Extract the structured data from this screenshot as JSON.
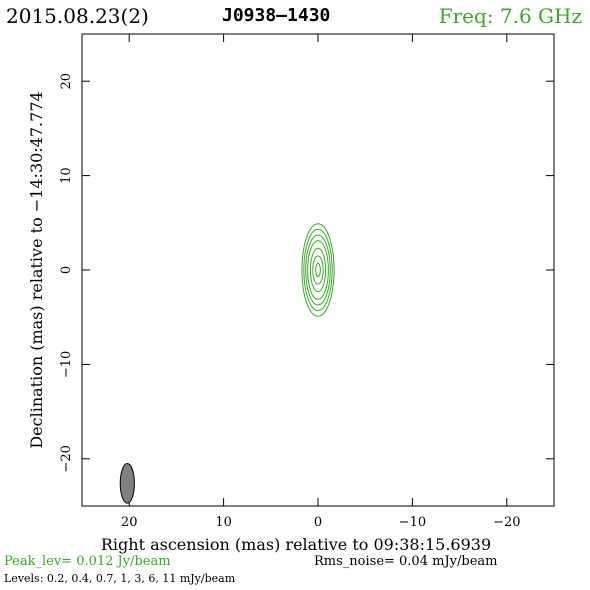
{
  "header": {
    "date": "2015.08.23(2)",
    "source": "J0938–1430",
    "freq": "Freq: 7.6 GHz"
  },
  "colors": {
    "contour": "#3aa62a",
    "beam_fill": "#808080",
    "freq_text": "#3aa62a"
  },
  "chart_data": {
    "type": "contour",
    "xlabel": "Right ascension (mas) relative to 09:38:15.6939",
    "ylabel": "Declination (mas) relative to −14:30:47.774",
    "xlim": [
      25,
      -25
    ],
    "ylim": [
      -25,
      25
    ],
    "x_ticks": [
      20,
      10,
      0,
      -10,
      -20
    ],
    "y_ticks": [
      -20,
      -10,
      0,
      10,
      20
    ],
    "x_tick_labels": [
      "20",
      "10",
      "0",
      "−10",
      "−20"
    ],
    "y_tick_labels": [
      "−20",
      "−10",
      "0",
      "10",
      "20"
    ],
    "grid": false,
    "contour_center": [
      0,
      0
    ],
    "contours": [
      {
        "level": 0.2,
        "rx": 1.7,
        "ry": 4.9
      },
      {
        "level": 0.4,
        "rx": 1.5,
        "ry": 4.3
      },
      {
        "level": 0.7,
        "rx": 1.3,
        "ry": 3.7
      },
      {
        "level": 1,
        "rx": 1.1,
        "ry": 3.1
      },
      {
        "level": 3,
        "rx": 0.8,
        "ry": 2.3
      },
      {
        "level": 6,
        "rx": 0.55,
        "ry": 1.5
      },
      {
        "level": 11,
        "rx": 0.25,
        "ry": 0.7
      }
    ],
    "beam": {
      "x": 20.2,
      "y": -22.6,
      "major": 4.2,
      "minor": 1.5,
      "pa": 0
    },
    "peak_text": "Peak_lev=  0.012 Jy/beam",
    "rms_text": "Rms_noise= 0.04 mJy/beam",
    "levels_text": "Levels: 0.2,  0.4,  0.7,    1,    3,    6,   11  mJy/beam"
  }
}
